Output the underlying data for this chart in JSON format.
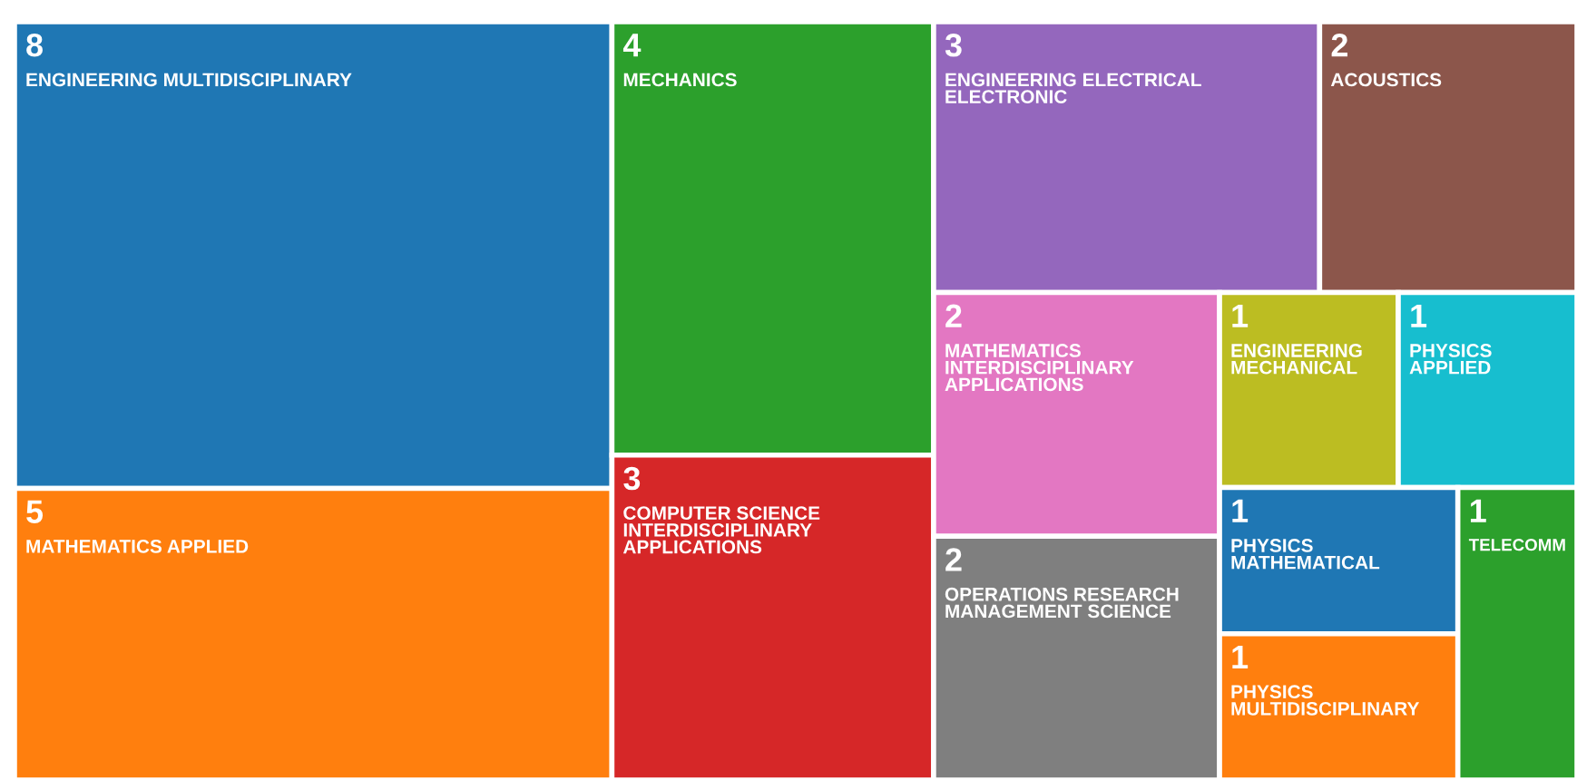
{
  "chart_data": {
    "type": "other",
    "data_labels": true,
    "categories": [
      "ENGINEERING MULTIDISCIPLINARY",
      "MATHEMATICS APPLIED",
      "MECHANICS",
      "COMPUTER SCIENCE INTERDISCIPLINARY APPLICATIONS",
      "ENGINEERING ELECTRICAL ELECTRONIC",
      "ACOUSTICS",
      "MATHEMATICS INTERDISCIPLINARY APPLICATIONS",
      "OPERATIONS RESEARCH MANAGEMENT SCIENCE",
      "ENGINEERING MECHANICAL",
      "PHYSICS APPLIED",
      "PHYSICS MATHEMATICAL",
      "PHYSICS MULTIDISCIPLINARY",
      "TELECOMM"
    ],
    "values": [
      8,
      5,
      4,
      3,
      3,
      2,
      2,
      2,
      1,
      1,
      1,
      1,
      1
    ],
    "colors": [
      "#1f77b4",
      "#ff7f0e",
      "#2ca02c",
      "#d62728",
      "#9467bd",
      "#8c564b",
      "#e377c2",
      "#7f7f7f",
      "#bcbd22",
      "#17becf",
      "#1f77b4",
      "#ff7f0e",
      "#2ca02c"
    ]
  }
}
